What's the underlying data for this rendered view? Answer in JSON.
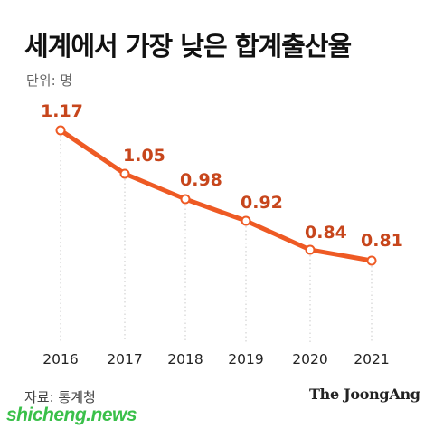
{
  "header": {
    "title": "세계에서 가장 낮은 합계출산율",
    "unit_label": "단위: 명"
  },
  "footer": {
    "source": "자료: 통계청",
    "brand": "The JoongAng",
    "watermark": "shicheng.news"
  },
  "chart_data": {
    "type": "line",
    "title": "세계에서 가장 낮은 합계출산율",
    "categories": [
      "2016",
      "2017",
      "2018",
      "2019",
      "2020",
      "2021"
    ],
    "series": [
      {
        "values": [
          1.17,
          1.05,
          0.98,
          0.92,
          0.84,
          0.81
        ]
      }
    ],
    "data_labels": [
      "1.17",
      "1.05",
      "0.98",
      "0.92",
      "0.84",
      "0.81"
    ],
    "ylim": [
      0.62,
      1.24
    ],
    "grid": "vertical-dotted-per-category",
    "line_color": "#ee5a24",
    "label_color": "#c7461c"
  }
}
